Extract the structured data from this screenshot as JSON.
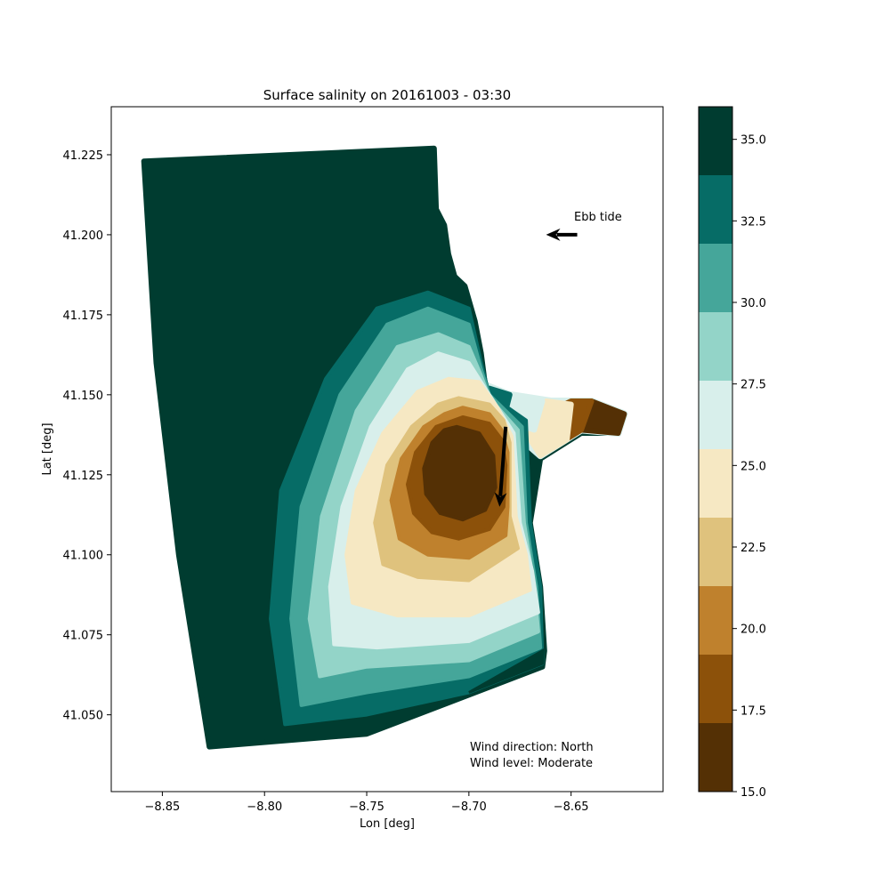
{
  "chart_data": {
    "type": "heatmap",
    "title": "Surface salinity on 20161003 - 03:30",
    "xlabel": "Lon [deg]",
    "ylabel": "Lat [deg]",
    "xlim": [
      -8.875,
      -8.605
    ],
    "ylim": [
      41.026,
      41.24
    ],
    "xticks": [
      -8.85,
      -8.8,
      -8.75,
      -8.7,
      -8.65
    ],
    "xtick_labels": [
      "−8.85",
      "−8.80",
      "−8.75",
      "−8.70",
      "−8.65"
    ],
    "yticks": [
      41.05,
      41.075,
      41.1,
      41.125,
      41.15,
      41.175,
      41.2,
      41.225
    ],
    "ytick_labels": [
      "41.050",
      "41.075",
      "41.100",
      "41.125",
      "41.150",
      "41.175",
      "41.200",
      "41.225"
    ],
    "grid": false,
    "colorbar": {
      "range": [
        15.0,
        36.0
      ],
      "levels": [
        15.0,
        17.1,
        19.2,
        21.3,
        23.4,
        25.5,
        27.6,
        29.7,
        31.8,
        33.9,
        36.0
      ],
      "colors": [
        "#543005",
        "#8c510a",
        "#bf812d",
        "#dfc27d",
        "#f6e8c3",
        "#d8efeb",
        "#93d4c8",
        "#45a69a",
        "#066c66",
        "#003c30"
      ],
      "ticks": [
        15.0,
        17.5,
        20.0,
        22.5,
        25.0,
        27.5,
        30.0,
        32.5,
        35.0
      ],
      "tick_labels": [
        "15.0",
        "17.5",
        "20.0",
        "22.5",
        "25.0",
        "27.5",
        "30.0",
        "32.5",
        "35.0"
      ]
    },
    "domain_outline_lonlat": [
      [
        -8.859,
        41.223
      ],
      [
        -8.717,
        41.227
      ],
      [
        -8.716,
        41.208
      ],
      [
        -8.712,
        41.203
      ],
      [
        -8.71,
        41.194
      ],
      [
        -8.707,
        41.187
      ],
      [
        -8.702,
        41.184
      ],
      [
        -8.697,
        41.173
      ],
      [
        -8.694,
        41.163
      ],
      [
        -8.692,
        41.153
      ],
      [
        -8.68,
        41.149
      ],
      [
        -8.66,
        41.147
      ],
      [
        -8.64,
        41.148
      ],
      [
        -8.624,
        41.144
      ],
      [
        -8.627,
        41.138
      ],
      [
        -8.645,
        41.138
      ],
      [
        -8.665,
        41.13
      ],
      [
        -8.67,
        41.11
      ],
      [
        -8.665,
        41.09
      ],
      [
        -8.663,
        41.07
      ],
      [
        -8.664,
        41.065
      ],
      [
        -8.75,
        41.044
      ],
      [
        -8.827,
        41.04
      ],
      [
        -8.842,
        41.1
      ],
      [
        -8.853,
        41.16
      ]
    ],
    "salinity_zones": [
      {
        "level_index": 8,
        "outline_lonlat": [
          [
            -8.72,
            41.182
          ],
          [
            -8.7,
            41.177
          ],
          [
            -8.694,
            41.16
          ],
          [
            -8.69,
            41.15
          ],
          [
            -8.672,
            41.142
          ],
          [
            -8.67,
            41.11
          ],
          [
            -8.665,
            41.09
          ],
          [
            -8.664,
            41.066
          ],
          [
            -8.7,
            41.057
          ],
          [
            -8.75,
            41.05
          ],
          [
            -8.79,
            41.047
          ],
          [
            -8.797,
            41.08
          ],
          [
            -8.792,
            41.12
          ],
          [
            -8.77,
            41.155
          ],
          [
            -8.745,
            41.177
          ]
        ]
      },
      {
        "level_index": 7,
        "outline_lonlat": [
          [
            -8.72,
            41.177
          ],
          [
            -8.7,
            41.172
          ],
          [
            -8.694,
            41.158
          ],
          [
            -8.69,
            41.15
          ],
          [
            -8.674,
            41.14
          ],
          [
            -8.672,
            41.11
          ],
          [
            -8.667,
            41.09
          ],
          [
            -8.665,
            41.071
          ],
          [
            -8.7,
            41.062
          ],
          [
            -8.75,
            41.057
          ],
          [
            -8.782,
            41.053
          ],
          [
            -8.787,
            41.08
          ],
          [
            -8.782,
            41.115
          ],
          [
            -8.763,
            41.15
          ],
          [
            -8.74,
            41.172
          ]
        ]
      },
      {
        "level_index": 6,
        "outline_lonlat": [
          [
            -8.715,
            41.169
          ],
          [
            -8.7,
            41.165
          ],
          [
            -8.694,
            41.156
          ],
          [
            -8.69,
            41.149
          ],
          [
            -8.676,
            41.139
          ],
          [
            -8.673,
            41.11
          ],
          [
            -8.668,
            41.09
          ],
          [
            -8.666,
            41.076
          ],
          [
            -8.7,
            41.067
          ],
          [
            -8.75,
            41.065
          ],
          [
            -8.773,
            41.062
          ],
          [
            -8.778,
            41.08
          ],
          [
            -8.772,
            41.112
          ],
          [
            -8.755,
            41.145
          ],
          [
            -8.735,
            41.165
          ]
        ]
      },
      {
        "level_index": 5,
        "outline_lonlat": [
          [
            -8.715,
            41.163
          ],
          [
            -8.7,
            41.16
          ],
          [
            -8.694,
            41.154
          ],
          [
            -8.688,
            41.148
          ],
          [
            -8.678,
            41.138
          ],
          [
            -8.675,
            41.11
          ],
          [
            -8.669,
            41.095
          ],
          [
            -8.666,
            41.082
          ],
          [
            -8.7,
            41.073
          ],
          [
            -8.745,
            41.071
          ],
          [
            -8.766,
            41.072
          ],
          [
            -8.768,
            41.09
          ],
          [
            -8.762,
            41.115
          ],
          [
            -8.748,
            41.14
          ],
          [
            -8.73,
            41.158
          ]
        ]
      },
      {
        "level_index": 4,
        "outline_lonlat": [
          [
            -8.71,
            41.155
          ],
          [
            -8.695,
            41.154
          ],
          [
            -8.686,
            41.146
          ],
          [
            -8.679,
            41.137
          ],
          [
            -8.677,
            41.112
          ],
          [
            -8.672,
            41.1
          ],
          [
            -8.67,
            41.089
          ],
          [
            -8.7,
            41.081
          ],
          [
            -8.735,
            41.081
          ],
          [
            -8.757,
            41.085
          ],
          [
            -8.76,
            41.1
          ],
          [
            -8.755,
            41.12
          ],
          [
            -8.742,
            41.138
          ],
          [
            -8.725,
            41.151
          ]
        ]
      },
      {
        "level_index": 3,
        "outline_lonlat": [
          [
            -8.705,
            41.149
          ],
          [
            -8.69,
            41.147
          ],
          [
            -8.683,
            41.142
          ],
          [
            -8.68,
            41.135
          ],
          [
            -8.68,
            41.112
          ],
          [
            -8.676,
            41.102
          ],
          [
            -8.7,
            41.092
          ],
          [
            -8.725,
            41.093
          ],
          [
            -8.742,
            41.097
          ],
          [
            -8.746,
            41.11
          ],
          [
            -8.74,
            41.128
          ],
          [
            -8.728,
            41.14
          ],
          [
            -8.715,
            41.147
          ]
        ]
      },
      {
        "level_index": 2,
        "outline_lonlat": [
          [
            -8.703,
            41.146
          ],
          [
            -8.69,
            41.144
          ],
          [
            -8.684,
            41.139
          ],
          [
            -8.681,
            41.132
          ],
          [
            -8.681,
            41.115
          ],
          [
            -8.682,
            41.106
          ],
          [
            -8.7,
            41.099
          ],
          [
            -8.72,
            41.1
          ],
          [
            -8.734,
            41.105
          ],
          [
            -8.738,
            41.117
          ],
          [
            -8.733,
            41.13
          ],
          [
            -8.722,
            41.14
          ],
          [
            -8.712,
            41.144
          ]
        ]
      },
      {
        "level_index": 1,
        "outline_lonlat": [
          [
            -8.703,
            41.143
          ],
          [
            -8.69,
            41.141
          ],
          [
            -8.684,
            41.136
          ],
          [
            -8.682,
            41.128
          ],
          [
            -8.683,
            41.115
          ],
          [
            -8.69,
            41.108
          ],
          [
            -8.705,
            41.105
          ],
          [
            -8.718,
            41.107
          ],
          [
            -8.727,
            41.113
          ],
          [
            -8.73,
            41.122
          ],
          [
            -8.726,
            41.132
          ],
          [
            -8.716,
            41.14
          ]
        ]
      },
      {
        "level_index": 0,
        "outline_lonlat": [
          [
            -8.706,
            41.14
          ],
          [
            -8.695,
            41.138
          ],
          [
            -8.688,
            41.131
          ],
          [
            -8.687,
            41.121
          ],
          [
            -8.692,
            41.114
          ],
          [
            -8.703,
            41.111
          ],
          [
            -8.714,
            41.113
          ],
          [
            -8.721,
            41.119
          ],
          [
            -8.722,
            41.127
          ],
          [
            -8.718,
            41.135
          ],
          [
            -8.712,
            41.139
          ]
        ]
      }
    ],
    "estuary_outline_lonlat": [
      [
        -8.692,
        41.153
      ],
      [
        -8.68,
        41.15
      ],
      [
        -8.66,
        41.148
      ],
      [
        -8.64,
        41.148
      ],
      [
        -8.624,
        41.144
      ],
      [
        -8.627,
        41.138
      ],
      [
        -8.645,
        41.139
      ],
      [
        -8.665,
        41.131
      ],
      [
        -8.672,
        41.135
      ],
      [
        -8.69,
        41.146
      ]
    ],
    "estuary_bands": [
      {
        "level_index": 0,
        "outline_lonlat": [
          [
            -8.64,
            41.148
          ],
          [
            -8.624,
            41.144
          ],
          [
            -8.627,
            41.138
          ],
          [
            -8.645,
            41.139
          ],
          [
            -8.648,
            41.145
          ]
        ]
      },
      {
        "level_index": 1,
        "outline_lonlat": [
          [
            -8.65,
            41.148
          ],
          [
            -8.64,
            41.148
          ],
          [
            -8.645,
            41.139
          ],
          [
            -8.66,
            41.133
          ],
          [
            -8.66,
            41.145
          ]
        ]
      },
      {
        "level_index": 4,
        "outline_lonlat": [
          [
            -8.662,
            41.148
          ],
          [
            -8.65,
            41.147
          ],
          [
            -8.652,
            41.136
          ],
          [
            -8.665,
            41.131
          ],
          [
            -8.671,
            41.137
          ]
        ]
      },
      {
        "level_index": 5,
        "outline_lonlat": [
          [
            -8.68,
            41.15
          ],
          [
            -8.664,
            41.148
          ],
          [
            -8.668,
            41.139
          ],
          [
            -8.677,
            41.141
          ]
        ]
      },
      {
        "level_index": 8,
        "outline_lonlat": [
          [
            -8.69,
            41.152
          ],
          [
            -8.68,
            41.15
          ],
          [
            -8.682,
            41.145
          ],
          [
            -8.69,
            41.148
          ]
        ]
      }
    ],
    "southern_wedge": {
      "level_index": 9,
      "outline_lonlat": [
        [
          -8.7,
          41.057
        ],
        [
          -8.664,
          41.07
        ],
        [
          -8.664,
          41.066
        ]
      ]
    },
    "vectors": [
      {
        "label": "Ebb tide",
        "tail_lonlat": [
          -8.647,
          41.2
        ],
        "direction": "west"
      },
      {
        "tail_lonlat": [
          -8.682,
          41.14
        ],
        "head_lonlat": [
          -8.685,
          41.115
        ],
        "direction": "south"
      }
    ],
    "annotations": [
      "Ebb tide",
      "Wind direction: North",
      "Wind level: Moderate"
    ]
  }
}
